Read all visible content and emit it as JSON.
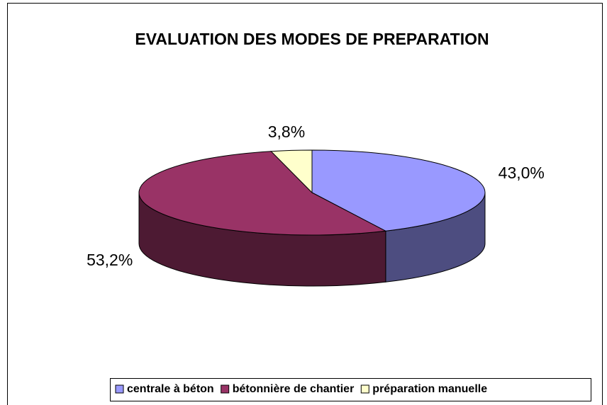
{
  "chart_data": {
    "type": "pie3d",
    "title": "EVALUATION DES MODES DE PREPARATION",
    "categories": [
      "centrale à béton",
      "bétonnière de chantier",
      "préparation manuelle"
    ],
    "values": [
      43.0,
      53.2,
      3.8
    ],
    "value_labels": [
      "43,0%",
      "53,2%",
      "3,8%"
    ],
    "colors": [
      "#9999ff",
      "#993366",
      "#ffffcc"
    ],
    "legend": "bottom"
  }
}
